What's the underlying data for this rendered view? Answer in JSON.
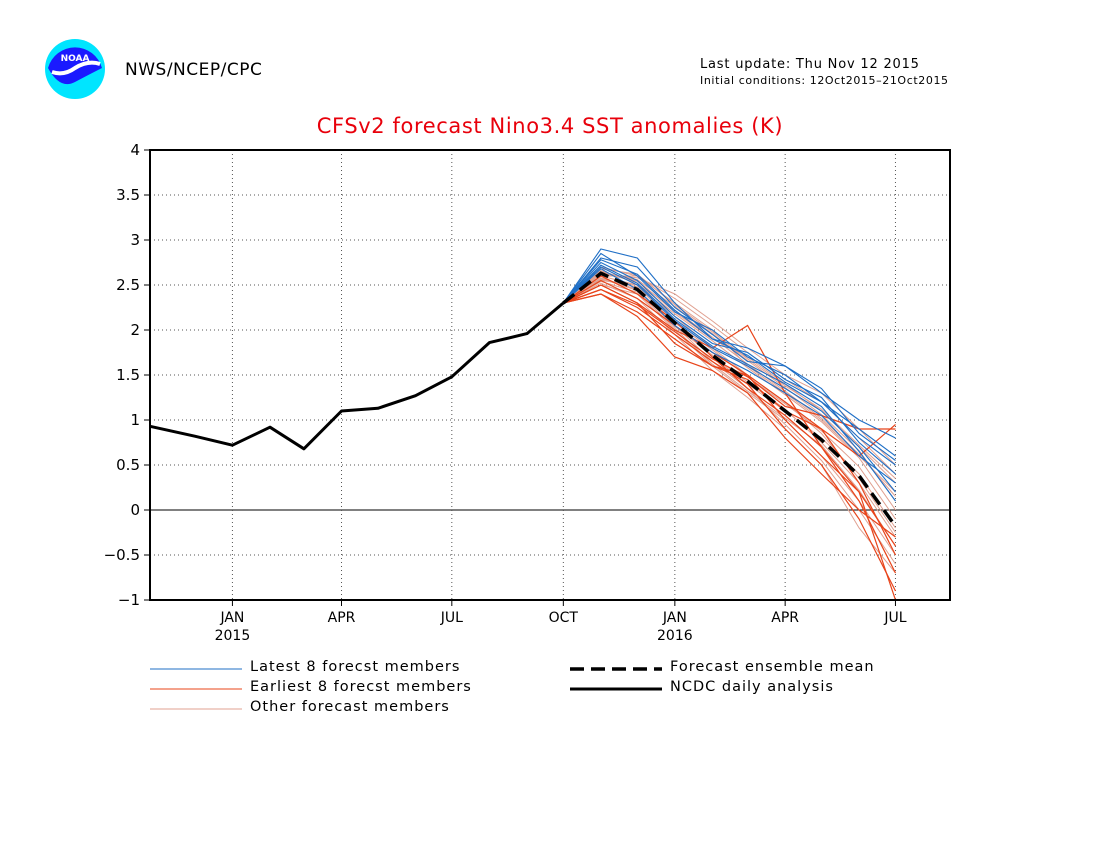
{
  "header": {
    "agency": "NWS/NCEP/CPC",
    "last_update": "Last update: Thu Nov 12 2015",
    "initial_conditions": "Initial conditions: 12Oct2015–21Oct2015",
    "logo_text": "NOAA"
  },
  "colors": {
    "latest": "#1f6fc6",
    "earliest": "#e8441a",
    "other": "#e0a090",
    "mean": "#000000",
    "analysis": "#000000",
    "title": "#e8000b"
  },
  "chart_data": {
    "type": "line",
    "title": "CFSv2 forecast Nino3.4 SST anomalies (K)",
    "xlabel": "",
    "ylabel": "",
    "ylim": [
      -1,
      4
    ],
    "yticks": [
      "4",
      "3.5",
      "3",
      "2.5",
      "2",
      "1.5",
      "1",
      "0.5",
      "0",
      "−0.5",
      "−1"
    ],
    "ytick_values": [
      4,
      3.5,
      3,
      2.5,
      2,
      1.5,
      1,
      0.5,
      0,
      -0.5,
      -1
    ],
    "x_range": [
      "2014-10-25",
      "2016-08-15"
    ],
    "xticks": [
      {
        "date": "2015-01-01",
        "month": "JAN",
        "year": "2015"
      },
      {
        "date": "2015-04-01",
        "month": "APR",
        "year": ""
      },
      {
        "date": "2015-07-01",
        "month": "JUL",
        "year": ""
      },
      {
        "date": "2015-10-01",
        "month": "OCT",
        "year": ""
      },
      {
        "date": "2016-01-01",
        "month": "JAN",
        "year": "2016"
      },
      {
        "date": "2016-04-01",
        "month": "APR",
        "year": ""
      },
      {
        "date": "2016-07-01",
        "month": "JUL",
        "year": ""
      }
    ],
    "grid": true,
    "zero_line": true,
    "legend": {
      "placement": "bottom",
      "entries": [
        {
          "key": "latest",
          "label": "Latest 8 forecst members"
        },
        {
          "key": "earliest",
          "label": "Earliest 8 forecst members"
        },
        {
          "key": "other",
          "label": "Other forecast members"
        },
        {
          "key": "mean",
          "label": "Forecast ensemble mean"
        },
        {
          "key": "analysis",
          "label": "NCDC daily analysis"
        }
      ]
    },
    "forecast_dates": [
      "2015-10-01",
      "2015-11-01",
      "2015-12-01",
      "2016-01-01",
      "2016-02-01",
      "2016-03-01",
      "2016-04-01",
      "2016-05-01",
      "2016-06-01",
      "2016-07-01"
    ],
    "series": [
      {
        "name": "NCDC daily analysis",
        "style": "analysis",
        "points": [
          [
            "2014-10-25",
            0.93
          ],
          [
            "2014-12-01",
            0.82
          ],
          [
            "2015-01-01",
            0.72
          ],
          [
            "2015-02-01",
            0.92
          ],
          [
            "2015-03-01",
            0.68
          ],
          [
            "2015-04-01",
            1.1
          ],
          [
            "2015-05-01",
            1.13
          ],
          [
            "2015-06-01",
            1.27
          ],
          [
            "2015-07-01",
            1.48
          ],
          [
            "2015-08-01",
            1.86
          ],
          [
            "2015-09-01",
            1.96
          ],
          [
            "2015-10-01",
            2.3
          ]
        ]
      },
      {
        "name": "Forecast ensemble mean",
        "style": "mean",
        "values": [
          2.3,
          2.63,
          2.45,
          2.08,
          1.72,
          1.43,
          1.1,
          0.78,
          0.38,
          -0.18
        ]
      }
    ],
    "members": {
      "latest": [
        [
          2.3,
          2.9,
          2.8,
          2.3,
          1.9,
          1.8,
          1.6,
          1.3,
          1.0,
          0.8
        ],
        [
          2.3,
          2.85,
          2.6,
          2.2,
          2.0,
          1.7,
          1.5,
          1.2,
          0.9,
          0.6
        ],
        [
          2.3,
          2.75,
          2.55,
          2.15,
          1.85,
          1.75,
          1.45,
          1.25,
          0.75,
          0.4
        ],
        [
          2.3,
          2.7,
          2.5,
          2.1,
          1.8,
          1.6,
          1.35,
          1.1,
          0.7,
          0.2
        ],
        [
          2.3,
          2.8,
          2.7,
          2.25,
          1.95,
          1.65,
          1.6,
          1.35,
          0.85,
          0.55
        ],
        [
          2.3,
          2.68,
          2.45,
          2.05,
          1.75,
          1.55,
          1.3,
          1.05,
          0.6,
          0.3
        ],
        [
          2.3,
          2.72,
          2.52,
          2.12,
          1.82,
          1.62,
          1.4,
          1.15,
          0.65,
          0.1
        ],
        [
          2.3,
          2.78,
          2.62,
          2.22,
          1.9,
          1.72,
          1.42,
          1.2,
          0.8,
          0.5
        ]
      ],
      "earliest": [
        [
          2.3,
          2.4,
          2.2,
          1.9,
          1.6,
          1.5,
          1.0,
          0.6,
          0.2,
          -0.4
        ],
        [
          2.3,
          2.5,
          2.3,
          2.0,
          1.8,
          2.05,
          1.3,
          0.7,
          0.1,
          -0.7
        ],
        [
          2.3,
          2.45,
          2.25,
          1.95,
          1.65,
          1.4,
          0.9,
          0.5,
          -0.1,
          -0.9
        ],
        [
          2.3,
          2.55,
          2.35,
          2.05,
          1.75,
          1.5,
          1.2,
          0.9,
          0.6,
          0.95
        ],
        [
          2.3,
          2.4,
          2.15,
          1.7,
          1.55,
          1.3,
          0.8,
          0.4,
          0.0,
          -0.3
        ],
        [
          2.3,
          2.5,
          2.3,
          1.85,
          1.6,
          1.45,
          1.1,
          0.9,
          0.3,
          -0.5
        ],
        [
          2.3,
          2.6,
          2.4,
          2.1,
          1.7,
          1.35,
          1.05,
          0.7,
          0.2,
          -1.0
        ],
        [
          2.3,
          2.45,
          2.28,
          1.98,
          1.68,
          1.48,
          1.15,
          1.05,
          0.9,
          0.9
        ]
      ],
      "other": [
        [
          2.3,
          2.6,
          2.6,
          2.3,
          2.0,
          1.6,
          1.3,
          1.0,
          0.6,
          0.2
        ],
        [
          2.3,
          2.55,
          2.5,
          2.1,
          1.7,
          1.4,
          1.1,
          0.8,
          0.4,
          -0.2
        ],
        [
          2.3,
          2.65,
          2.55,
          2.2,
          1.9,
          1.7,
          1.4,
          1.1,
          0.7,
          0.3
        ],
        [
          2.3,
          2.5,
          2.4,
          2.0,
          1.6,
          1.3,
          1.0,
          0.6,
          0.1,
          -0.5
        ],
        [
          2.3,
          2.7,
          2.6,
          2.35,
          2.05,
          1.75,
          1.45,
          1.2,
          0.8,
          0.4
        ],
        [
          2.3,
          2.58,
          2.45,
          2.05,
          1.65,
          1.35,
          0.95,
          0.55,
          0.0,
          -0.6
        ],
        [
          2.3,
          2.62,
          2.58,
          2.4,
          2.1,
          1.8,
          1.5,
          1.3,
          0.9,
          0.5
        ],
        [
          2.3,
          2.52,
          2.35,
          1.95,
          1.55,
          1.25,
          0.9,
          0.5,
          -0.2,
          -0.7
        ],
        [
          2.3,
          2.66,
          2.52,
          2.18,
          1.88,
          1.58,
          1.28,
          0.98,
          0.58,
          0.0
        ],
        [
          2.3,
          2.56,
          2.48,
          2.08,
          1.78,
          1.48,
          1.18,
          0.88,
          0.48,
          -0.1
        ],
        [
          2.3,
          2.64,
          2.56,
          2.26,
          1.96,
          1.66,
          1.36,
          1.06,
          0.66,
          0.1
        ],
        [
          2.3,
          2.54,
          2.42,
          2.02,
          1.62,
          1.32,
          1.02,
          0.72,
          0.22,
          -0.4
        ],
        [
          2.3,
          2.68,
          2.62,
          2.28,
          1.98,
          1.68,
          1.38,
          1.12,
          0.72,
          0.35
        ],
        [
          2.3,
          2.6,
          2.5,
          2.15,
          1.8,
          1.5,
          1.2,
          0.85,
          0.35,
          -0.25
        ],
        [
          2.3,
          2.57,
          2.44,
          2.04,
          1.72,
          1.42,
          1.12,
          0.75,
          0.3,
          -0.3
        ],
        [
          2.3,
          2.63,
          2.54,
          2.22,
          1.92,
          1.62,
          1.32,
          1.02,
          0.62,
          0.15
        ]
      ]
    }
  }
}
